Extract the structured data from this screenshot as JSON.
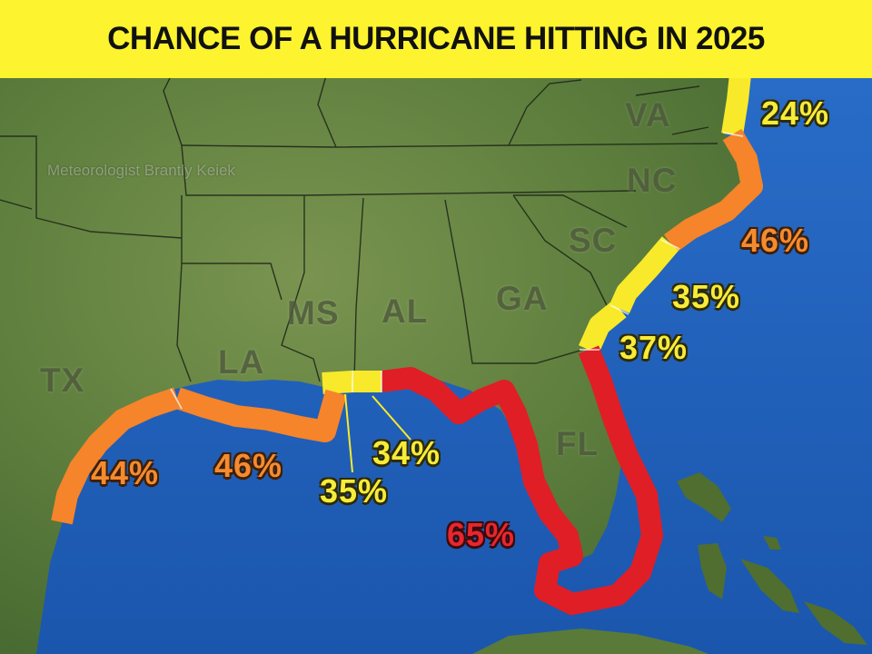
{
  "title": "CHANCE OF A HURRICANE HITTING IN 2025",
  "credit": "Meteorologist Brantly Keiek",
  "colors": {
    "banner": "#fdf32e",
    "red": "#e01e26",
    "orange": "#f5842a",
    "yellow": "#f8ea2a",
    "water": "#1f5fb8",
    "land": "#5e7f3d"
  },
  "states": {
    "va": "VA",
    "nc": "NC",
    "sc": "SC",
    "ga": "GA",
    "al": "AL",
    "ms": "MS",
    "la": "LA",
    "tx": "TX",
    "fl": "FL"
  },
  "segments": {
    "va": {
      "label": "24%",
      "color": "yellow",
      "percent": 24
    },
    "nc": {
      "label": "46%",
      "color": "orange",
      "percent": 46
    },
    "sc": {
      "label": "35%",
      "color": "yellow",
      "percent": 35
    },
    "ga": {
      "label": "37%",
      "color": "yellow",
      "percent": 37
    },
    "fl": {
      "label": "65%",
      "color": "red",
      "percent": 65
    },
    "al": {
      "label": "34%",
      "color": "yellow",
      "percent": 34
    },
    "ms": {
      "label": "35%",
      "color": "yellow",
      "percent": 35
    },
    "la": {
      "label": "46%",
      "color": "orange",
      "percent": 46
    },
    "tx": {
      "label": "44%",
      "color": "orange",
      "percent": 44
    }
  }
}
